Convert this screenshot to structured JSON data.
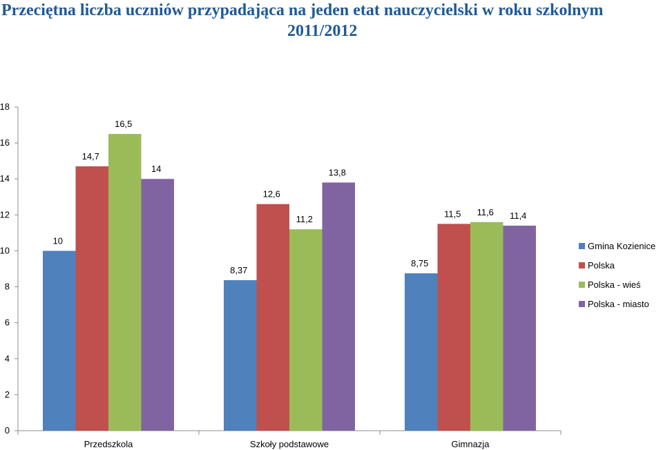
{
  "chart_data": {
    "type": "bar",
    "title_line1": "Przeciętna liczba uczniów przypadająca na jeden etat nauczycielski w roku szkolnym",
    "title_line2": "2011/2012",
    "categories": [
      "Przedszkola",
      "Szkoły podstawowe",
      "Gimnazja"
    ],
    "series": [
      {
        "name": "Gmina Kozienice",
        "values": [
          10,
          8.37,
          8.75
        ],
        "labels": [
          "10",
          "8,37",
          "8,75"
        ],
        "color": "#4f81bd"
      },
      {
        "name": "Polska",
        "values": [
          14.7,
          12.6,
          11.5
        ],
        "labels": [
          "14,7",
          "12,6",
          "11,5"
        ],
        "color": "#c0504d"
      },
      {
        "name": "Polska - wieś",
        "values": [
          16.5,
          11.2,
          11.6
        ],
        "labels": [
          "16,5",
          "11,2",
          "11,6"
        ],
        "color": "#9bbb59"
      },
      {
        "name": "Polska - miasto",
        "values": [
          14,
          13.8,
          11.4
        ],
        "labels": [
          "14",
          "13,8",
          "11,4"
        ],
        "color": "#8064a2"
      }
    ],
    "ylim": [
      0,
      18
    ],
    "yticks": [
      0,
      2,
      4,
      6,
      8,
      10,
      12,
      14,
      16,
      18
    ],
    "grid": false,
    "legend": "right"
  }
}
